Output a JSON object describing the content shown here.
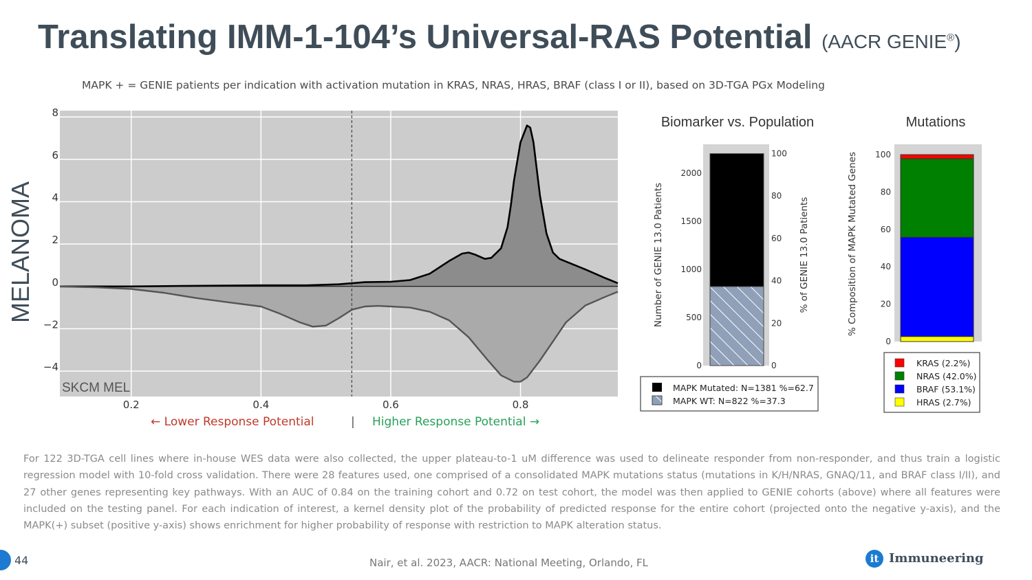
{
  "title": {
    "main": "Translating IMM-1-104’s Universal-RAS Potential",
    "sub": "(AACR GENIE",
    "reg": "®",
    "close": ")"
  },
  "subtitle": "MAPK + = GENIE patients per indication with activation mutation in KRAS, NRAS, HRAS, BRAF (class I or II), based on 3D-TGA PGx Modeling",
  "side_label": "MELANOMA",
  "response": {
    "lower": "← Lower Response Potential",
    "separator": "|",
    "higher": "Higher Response Potential →"
  },
  "footnote": "For 122 3D-TGA cell lines where in-house WES data were also collected, the upper plateau-to-1 uM difference was used to delineate responder from non-responder, and thus train a logistic regression model with 10-fold cross validation. There were 28 features used, one comprised of a consolidated MAPK mutations status (mutations in K/H/NRAS, GNAQ/11, and BRAF class I/II), and 27 other genes representing key pathways. With an AUC of 0.84 on the training cohort and 0.72 on test cohort, the model was then applied to GENIE cohorts (above) where all features were included on the testing panel. For each indication of interest, a kernel density plot of the probability of predicted response for the entire cohort (projected onto the negative y-axis), and the MAPK(+) subset (positive y-axis) shows enrichment for higher probability of response with restriction to MAPK alteration status.",
  "footer": {
    "page": "44",
    "citation": "Nair, et al. 2023, AACR: National Meeting, Orlando, FL",
    "logo_mark": "it",
    "logo_text": "Immuneering"
  },
  "colors": {
    "title": "#3f4d59",
    "plot_bg": "#cccccc",
    "low": "#c0392b",
    "high": "#27a05a",
    "brand": "#1c7bd1"
  },
  "chart_data": [
    {
      "type": "area",
      "title": "",
      "annotation": "SKCM MEL",
      "xlim": [
        0.09,
        0.95
      ],
      "ylim": [
        -5.2,
        8.3
      ],
      "xticks": [
        0.2,
        0.4,
        0.6,
        0.8
      ],
      "yticks": [
        -4,
        -2,
        0,
        2,
        4,
        6,
        8
      ],
      "ytick_labels": [
        "−4",
        "−2",
        "0",
        "2",
        "4",
        "6",
        "8"
      ],
      "grid": true,
      "threshold_line_x": 0.54,
      "series": [
        {
          "name": "MAPK(+) subset",
          "fill": "#8c8c8c",
          "stroke": "#000000",
          "x": [
            0.09,
            0.2,
            0.28,
            0.4,
            0.47,
            0.52,
            0.56,
            0.6,
            0.63,
            0.66,
            0.69,
            0.71,
            0.72,
            0.73,
            0.745,
            0.755,
            0.77,
            0.78,
            0.785,
            0.79,
            0.8,
            0.81,
            0.815,
            0.82,
            0.83,
            0.84,
            0.85,
            0.86,
            0.9,
            0.93,
            0.95
          ],
          "y": [
            0,
            0,
            0.02,
            0.05,
            0.05,
            0.1,
            0.2,
            0.22,
            0.3,
            0.6,
            1.2,
            1.55,
            1.6,
            1.5,
            1.3,
            1.35,
            1.8,
            2.8,
            3.8,
            5.0,
            6.8,
            7.6,
            7.5,
            6.8,
            4.3,
            2.5,
            1.6,
            1.3,
            0.8,
            0.4,
            0.15
          ]
        },
        {
          "name": "Entire cohort",
          "fill": "#aaaaaa",
          "stroke": "#555555",
          "x": [
            0.09,
            0.15,
            0.2,
            0.25,
            0.3,
            0.35,
            0.4,
            0.43,
            0.46,
            0.48,
            0.5,
            0.52,
            0.54,
            0.56,
            0.58,
            0.6,
            0.63,
            0.66,
            0.69,
            0.72,
            0.75,
            0.77,
            0.79,
            0.8,
            0.81,
            0.83,
            0.85,
            0.87,
            0.9,
            0.93,
            0.95
          ],
          "y": [
            0,
            -0.05,
            -0.12,
            -0.3,
            -0.55,
            -0.75,
            -0.95,
            -1.3,
            -1.7,
            -1.9,
            -1.85,
            -1.5,
            -1.1,
            -0.95,
            -0.92,
            -0.95,
            -1.0,
            -1.2,
            -1.6,
            -2.4,
            -3.5,
            -4.2,
            -4.5,
            -4.5,
            -4.3,
            -3.5,
            -2.6,
            -1.7,
            -0.9,
            -0.5,
            -0.25
          ]
        }
      ]
    },
    {
      "type": "bar",
      "title": "Biomarker vs. Population",
      "ylabel": "Number of GENIE 13.0 Patients",
      "y2label": "% of GENIE 13.0 Patients",
      "ylim": [
        0,
        2300
      ],
      "yticks": [
        0,
        500,
        1000,
        1500,
        2000
      ],
      "y2lim": [
        0,
        104.3
      ],
      "y2ticks": [
        0,
        20,
        40,
        60,
        80,
        100
      ],
      "stack": [
        {
          "name": "MAPK WT",
          "value": 822,
          "percent": 37.3,
          "color": "#8fa0b8",
          "pattern": "hatch"
        },
        {
          "name": "MAPK Mutated",
          "value": 1381,
          "percent": 62.7,
          "color": "#000000"
        }
      ],
      "legend": [
        "MAPK Mutated: N=1381 %=62.7",
        "MAPK WT: N=822 %=37.3"
      ]
    },
    {
      "type": "bar",
      "title": "Mutations",
      "ylabel": "% Composition of MAPK Mutated Genes",
      "ylim": [
        0,
        100
      ],
      "yticks": [
        0,
        20,
        40,
        60,
        80,
        100
      ],
      "stack": [
        {
          "name": "HRAS",
          "value": 2.7,
          "color": "#ffff00"
        },
        {
          "name": "BRAF",
          "value": 53.1,
          "color": "#0000ff"
        },
        {
          "name": "NRAS",
          "value": 42.0,
          "color": "#008000"
        },
        {
          "name": "KRAS",
          "value": 2.2,
          "color": "#ff0000"
        }
      ],
      "legend": [
        "KRAS (2.2%)",
        "NRAS (42.0%)",
        "BRAF (53.1%)",
        "HRAS (2.7%)"
      ],
      "legend_colors": [
        "#ff0000",
        "#008000",
        "#0000ff",
        "#ffff00"
      ]
    }
  ]
}
